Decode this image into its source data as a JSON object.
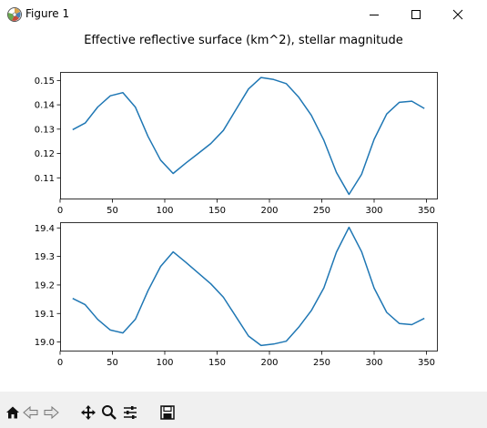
{
  "window": {
    "title": "Figure 1"
  },
  "figure": {
    "title": "Effective reflective surface (km^2), stellar magnitude"
  },
  "chart_data": [
    {
      "type": "line",
      "title": "",
      "xlabel": "",
      "ylabel": "",
      "xlim": [
        0,
        360
      ],
      "ylim": [
        0.1015,
        0.1535
      ],
      "x_ticks": [
        0,
        50,
        100,
        150,
        200,
        250,
        300,
        350
      ],
      "y_ticks": [
        0.11,
        0.12,
        0.13,
        0.14,
        0.15
      ],
      "y_tick_labels": [
        "0.11",
        "0.12",
        "0.13",
        "0.14",
        "0.15"
      ],
      "grid": false,
      "series": [
        {
          "color": "#1f77b4",
          "x": [
            12,
            24,
            36,
            48,
            60,
            72,
            84,
            96,
            108,
            120,
            132,
            144,
            156,
            168,
            180,
            192,
            204,
            216,
            228,
            240,
            252,
            264,
            276,
            288,
            300,
            312,
            324,
            336,
            348
          ],
          "y": [
            0.1298,
            0.1325,
            0.1391,
            0.1437,
            0.145,
            0.139,
            0.127,
            0.1173,
            0.1118,
            0.116,
            0.12,
            0.1241,
            0.1295,
            0.138,
            0.1465,
            0.1512,
            0.1504,
            0.1487,
            0.1431,
            0.1357,
            0.1254,
            0.1122,
            0.1032,
            0.1114,
            0.1258,
            0.1362,
            0.141,
            0.1415,
            0.1385
          ]
        }
      ]
    },
    {
      "type": "line",
      "title": "",
      "xlabel": "",
      "ylabel": "",
      "xlim": [
        0,
        360
      ],
      "ylim": [
        18.97,
        19.42
      ],
      "x_ticks": [
        0,
        50,
        100,
        150,
        200,
        250,
        300,
        350
      ],
      "y_ticks": [
        19.0,
        19.1,
        19.2,
        19.3,
        19.4
      ],
      "y_tick_labels": [
        "19.0",
        "19.1",
        "19.2",
        "19.3",
        "19.4"
      ],
      "grid": false,
      "series": [
        {
          "color": "#1f77b4",
          "x": [
            12,
            24,
            36,
            48,
            60,
            72,
            84,
            96,
            108,
            120,
            132,
            144,
            156,
            168,
            180,
            192,
            204,
            216,
            228,
            240,
            252,
            264,
            276,
            288,
            300,
            312,
            324,
            336,
            348
          ],
          "y": [
            19.153,
            19.131,
            19.079,
            19.042,
            19.032,
            19.08,
            19.18,
            19.265,
            19.316,
            19.28,
            19.242,
            19.204,
            19.157,
            19.089,
            19.021,
            18.988,
            18.993,
            19.003,
            19.052,
            19.11,
            19.19,
            19.315,
            19.402,
            19.317,
            19.189,
            19.104,
            19.065,
            19.061,
            19.083
          ]
        }
      ]
    }
  ]
}
